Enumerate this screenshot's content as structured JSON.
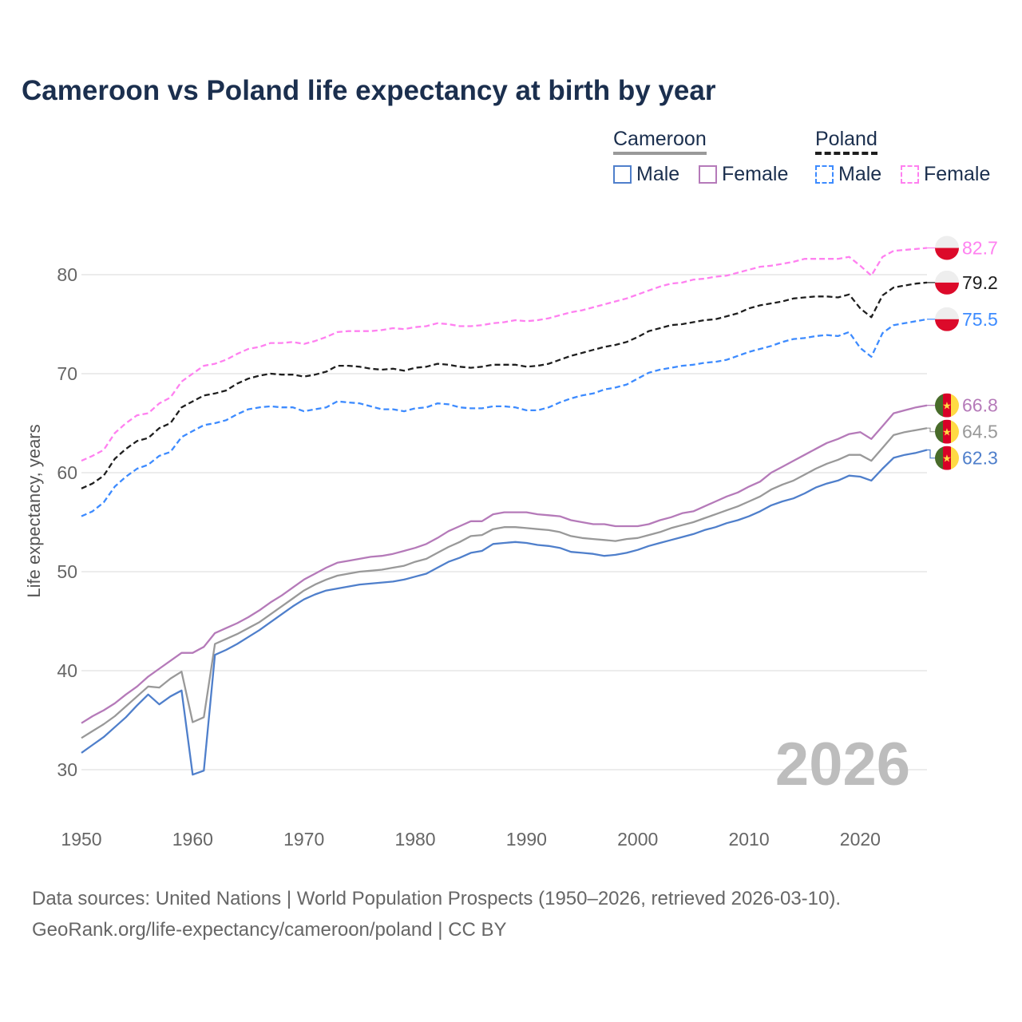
{
  "title": "Cameroon vs Poland life expectancy at birth by year",
  "legend": {
    "groups": [
      {
        "name": "Cameroon",
        "items": [
          "Male",
          "Female"
        ]
      },
      {
        "name": "Poland",
        "items": [
          "Male",
          "Female"
        ]
      }
    ]
  },
  "year_watermark": "2026",
  "source_lines": [
    "Data sources: United Nations | World Population Prospects (1950–2026, retrieved 2026-03-10).",
    "GeoRank.org/life-expectancy/cameroon/poland | CC BY"
  ],
  "chart_data": {
    "type": "line",
    "title": "Cameroon vs Poland life expectancy at birth by year",
    "xlabel": "",
    "ylabel": "Life expectancy, years",
    "xlim": [
      1950,
      2026
    ],
    "ylim": [
      26.5,
      85
    ],
    "xticks": [
      1950,
      1960,
      1970,
      1980,
      1990,
      2000,
      2010,
      2020
    ],
    "yticks": [
      30,
      40,
      50,
      60,
      70,
      80
    ],
    "grid": true,
    "legend_position": "top-right",
    "x_start": 1950,
    "series": [
      {
        "name": "Poland Female",
        "country": "Poland",
        "sex": "Female",
        "color": "#ff80f0",
        "dashed": true,
        "end_label": "82.7",
        "flag": "poland",
        "values": [
          61.2,
          61.7,
          62.3,
          64.0,
          65.0,
          65.8,
          66.0,
          67.0,
          67.6,
          69.2,
          70.0,
          70.8,
          71.0,
          71.4,
          72.0,
          72.5,
          72.7,
          73.1,
          73.1,
          73.2,
          73.0,
          73.3,
          73.7,
          74.2,
          74.3,
          74.3,
          74.3,
          74.4,
          74.6,
          74.5,
          74.7,
          74.8,
          75.1,
          75.0,
          74.8,
          74.8,
          74.9,
          75.1,
          75.2,
          75.4,
          75.3,
          75.4,
          75.6,
          75.9,
          76.2,
          76.4,
          76.7,
          77.0,
          77.3,
          77.6,
          78.0,
          78.4,
          78.8,
          79.1,
          79.2,
          79.5,
          79.6,
          79.8,
          79.9,
          80.2,
          80.5,
          80.8,
          80.9,
          81.1,
          81.3,
          81.6,
          81.6,
          81.6,
          81.6,
          81.8,
          80.9,
          79.9,
          81.8,
          82.4,
          82.5,
          82.6,
          82.7
        ]
      },
      {
        "name": "Poland",
        "country": "Poland",
        "sex": "Total",
        "color": "#1e1e1e",
        "dashed": true,
        "end_label": "79.2",
        "flag": "poland",
        "values": [
          58.4,
          58.9,
          59.7,
          61.4,
          62.4,
          63.2,
          63.5,
          64.5,
          65.0,
          66.6,
          67.2,
          67.8,
          68.0,
          68.3,
          69.0,
          69.5,
          69.8,
          70.0,
          69.9,
          69.9,
          69.7,
          69.9,
          70.2,
          70.8,
          70.8,
          70.7,
          70.5,
          70.4,
          70.5,
          70.3,
          70.6,
          70.7,
          71.0,
          70.9,
          70.7,
          70.6,
          70.7,
          70.9,
          70.9,
          70.9,
          70.7,
          70.8,
          71.0,
          71.4,
          71.8,
          72.1,
          72.4,
          72.7,
          72.9,
          73.2,
          73.7,
          74.3,
          74.6,
          74.9,
          75.0,
          75.2,
          75.4,
          75.5,
          75.8,
          76.1,
          76.6,
          76.9,
          77.1,
          77.3,
          77.6,
          77.7,
          77.8,
          77.8,
          77.7,
          78.0,
          76.6,
          75.7,
          77.9,
          78.7,
          78.9,
          79.1,
          79.2
        ]
      },
      {
        "name": "Poland Male",
        "country": "Poland",
        "sex": "Male",
        "color": "#3d8bff",
        "dashed": true,
        "end_label": "75.5",
        "flag": "poland",
        "values": [
          55.6,
          56.1,
          57.0,
          58.6,
          59.6,
          60.4,
          60.8,
          61.7,
          62.1,
          63.6,
          64.2,
          64.8,
          65.0,
          65.3,
          65.9,
          66.4,
          66.6,
          66.7,
          66.6,
          66.6,
          66.2,
          66.4,
          66.6,
          67.2,
          67.1,
          67.0,
          66.7,
          66.4,
          66.4,
          66.2,
          66.5,
          66.6,
          67.0,
          66.9,
          66.6,
          66.5,
          66.5,
          66.7,
          66.7,
          66.6,
          66.3,
          66.3,
          66.6,
          67.1,
          67.5,
          67.8,
          68.0,
          68.4,
          68.6,
          68.9,
          69.5,
          70.1,
          70.4,
          70.6,
          70.8,
          70.9,
          71.1,
          71.2,
          71.4,
          71.8,
          72.2,
          72.5,
          72.8,
          73.2,
          73.5,
          73.6,
          73.8,
          73.9,
          73.8,
          74.2,
          72.6,
          71.7,
          74.1,
          74.9,
          75.1,
          75.3,
          75.5
        ]
      },
      {
        "name": "Cameroon Female",
        "country": "Cameroon",
        "sex": "Female",
        "color": "#b57ab9",
        "dashed": false,
        "end_label": "66.8",
        "flag": "cameroon",
        "values": [
          34.7,
          35.4,
          36.0,
          36.7,
          37.6,
          38.4,
          39.4,
          40.2,
          41.0,
          41.8,
          41.8,
          42.4,
          43.8,
          44.3,
          44.8,
          45.4,
          46.1,
          46.9,
          47.6,
          48.4,
          49.2,
          49.8,
          50.4,
          50.9,
          51.1,
          51.3,
          51.5,
          51.6,
          51.8,
          52.1,
          52.4,
          52.8,
          53.4,
          54.1,
          54.6,
          55.1,
          55.1,
          55.8,
          56.0,
          56.0,
          56.0,
          55.8,
          55.7,
          55.6,
          55.2,
          55.0,
          54.8,
          54.8,
          54.6,
          54.6,
          54.6,
          54.8,
          55.2,
          55.5,
          55.9,
          56.1,
          56.6,
          57.1,
          57.6,
          58.0,
          58.6,
          59.1,
          60.0,
          60.6,
          61.2,
          61.8,
          62.4,
          63.0,
          63.4,
          63.9,
          64.1,
          63.4,
          64.7,
          66.0,
          66.3,
          66.6,
          66.8
        ]
      },
      {
        "name": "Cameroon",
        "country": "Cameroon",
        "sex": "Total",
        "color": "#999999",
        "dashed": false,
        "end_label": "64.5",
        "flag": "cameroon",
        "values": [
          33.2,
          33.9,
          34.6,
          35.4,
          36.4,
          37.4,
          38.4,
          38.3,
          39.2,
          39.9,
          34.8,
          35.3,
          42.7,
          43.2,
          43.7,
          44.3,
          44.9,
          45.7,
          46.5,
          47.3,
          48.1,
          48.7,
          49.2,
          49.6,
          49.8,
          50.0,
          50.1,
          50.2,
          50.4,
          50.6,
          51.0,
          51.3,
          51.9,
          52.5,
          53.0,
          53.6,
          53.7,
          54.3,
          54.5,
          54.5,
          54.4,
          54.3,
          54.2,
          54.0,
          53.6,
          53.4,
          53.3,
          53.2,
          53.1,
          53.3,
          53.4,
          53.7,
          54.0,
          54.4,
          54.7,
          55.0,
          55.4,
          55.8,
          56.2,
          56.6,
          57.1,
          57.6,
          58.3,
          58.8,
          59.2,
          59.8,
          60.4,
          60.9,
          61.3,
          61.8,
          61.8,
          61.2,
          62.5,
          63.8,
          64.1,
          64.3,
          64.5
        ]
      },
      {
        "name": "Cameroon Male",
        "country": "Cameroon",
        "sex": "Male",
        "color": "#4f7fcb",
        "dashed": false,
        "end_label": "62.3",
        "flag": "cameroon",
        "values": [
          31.7,
          32.5,
          33.3,
          34.3,
          35.3,
          36.5,
          37.6,
          36.6,
          37.4,
          38.0,
          29.5,
          29.9,
          41.6,
          42.1,
          42.7,
          43.4,
          44.1,
          44.9,
          45.7,
          46.5,
          47.2,
          47.7,
          48.1,
          48.3,
          48.5,
          48.7,
          48.8,
          48.9,
          49.0,
          49.2,
          49.5,
          49.8,
          50.4,
          51.0,
          51.4,
          51.9,
          52.1,
          52.8,
          52.9,
          53.0,
          52.9,
          52.7,
          52.6,
          52.4,
          52.0,
          51.9,
          51.8,
          51.6,
          51.7,
          51.9,
          52.2,
          52.6,
          52.9,
          53.2,
          53.5,
          53.8,
          54.2,
          54.5,
          54.9,
          55.2,
          55.6,
          56.1,
          56.7,
          57.1,
          57.4,
          57.9,
          58.5,
          58.9,
          59.2,
          59.7,
          59.6,
          59.2,
          60.4,
          61.5,
          61.8,
          62.0,
          62.3
        ]
      }
    ]
  }
}
